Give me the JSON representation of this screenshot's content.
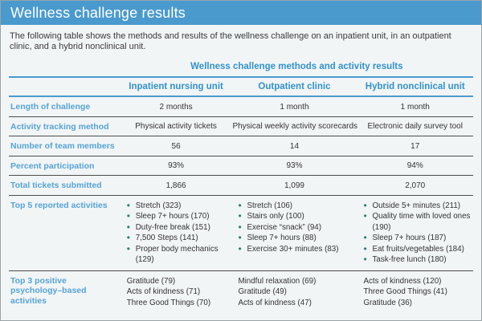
{
  "page": {
    "title": "Wellness challenge results",
    "intro": "The following table shows the methods and results of the wellness challenge on an inpatient unit, in an outpatient clinic, and a hybrid nonclinical unit."
  },
  "colors": {
    "header_bar_blue": "#4A9ACE",
    "accent_blue": "#3292CC",
    "row_label_blue": "#55A3D6",
    "bullet_teal": "#2E7E74",
    "body_text": "#333333",
    "background": "#F2F5F6"
  },
  "table": {
    "title": "Wellness challenge methods and activity results",
    "columns": [
      "Inpatient nursing unit",
      "Outpatient clinic",
      "Hybrid nonclinical unit"
    ],
    "rows": [
      {
        "label": "Length of challenge",
        "values": [
          "2 months",
          "1 month",
          "1 month"
        ]
      },
      {
        "label": "Activity tracking method",
        "values": [
          "Physical activity tickets",
          "Physical weekly activity scorecards",
          "Electronic daily survey tool"
        ]
      },
      {
        "label": "Number of team members",
        "values": [
          "56",
          "14",
          "17"
        ]
      },
      {
        "label": "Percent participation",
        "values": [
          "93%",
          "93%",
          "94%"
        ]
      },
      {
        "label": "Total tickets submitted",
        "values": [
          "1,866",
          "1,099",
          "2,070"
        ]
      },
      {
        "label": "Top 5 reported activities",
        "values": [
          [
            "Stretch (323)",
            "Sleep 7+ hours (170)",
            "Duty-free break (151)",
            "7,500 Steps (141)",
            "Proper body mechanics (129)"
          ],
          [
            "Stretch (106)",
            "Stairs only (100)",
            "Exercise “snack” (94)",
            "Sleep 7+ hours (88)",
            "Exercise 30+ minutes (83)"
          ],
          [
            "Outside 5+ minutes (211)",
            "Quality time with loved ones (190)",
            "Sleep 7+ hours (187)",
            "Eat fruits/vegetables (184)",
            "Task-free lunch (180)"
          ]
        ]
      },
      {
        "label": "Top 3 positive psychology–based activities",
        "values": [
          [
            "Gratitude (79)",
            "Acts of kindness (71)",
            "Three Good Things (70)"
          ],
          [
            "Mindful relaxation (69)",
            "Gratitude (49)",
            "Acts of kindness (47)"
          ],
          [
            "Acts of kindness (120)",
            "Three Good Things (41)",
            "Gratitude (36)"
          ]
        ]
      }
    ]
  }
}
